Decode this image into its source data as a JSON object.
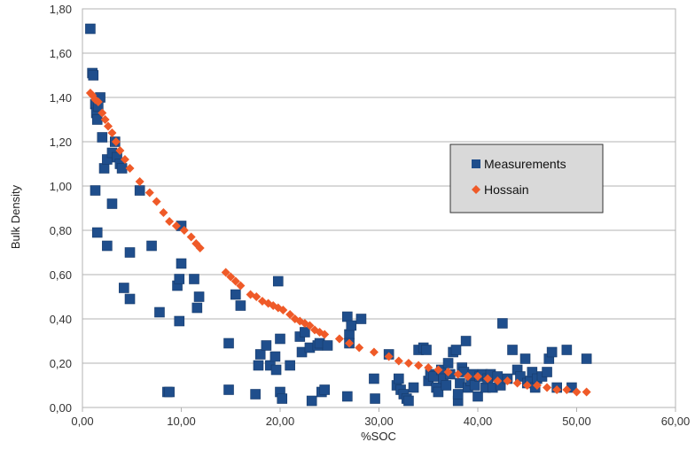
{
  "chart_data": {
    "type": "scatter",
    "title": "",
    "xlabel": "%SOC",
    "ylabel": "Bulk Density",
    "xlim": [
      0,
      60
    ],
    "ylim": [
      0,
      1.8
    ],
    "x_ticks": [
      "0,00",
      "10,00",
      "20,00",
      "30,00",
      "40,00",
      "50,00",
      "60,00"
    ],
    "y_ticks": [
      "0,00",
      "0,20",
      "0,40",
      "0,60",
      "0,80",
      "1,00",
      "1,20",
      "1,40",
      "1,60",
      "1,80"
    ],
    "grid": "horizontal",
    "legend_position": "right",
    "series": [
      {
        "name": "Measurements",
        "color": "#1f4e8c",
        "marker": "square",
        "points": [
          [
            0.8,
            1.71
          ],
          [
            1.0,
            1.51
          ],
          [
            1.1,
            1.5
          ],
          [
            1.3,
            1.37
          ],
          [
            1.4,
            1.33
          ],
          [
            1.5,
            1.3
          ],
          [
            1.8,
            1.4
          ],
          [
            1.6,
            1.36
          ],
          [
            2.0,
            1.22
          ],
          [
            2.2,
            1.08
          ],
          [
            2.5,
            1.12
          ],
          [
            3.0,
            1.15
          ],
          [
            3.3,
            1.2
          ],
          [
            3.5,
            1.13
          ],
          [
            3.8,
            1.1
          ],
          [
            4.0,
            1.08
          ],
          [
            1.3,
            0.98
          ],
          [
            3.0,
            0.92
          ],
          [
            5.8,
            0.98
          ],
          [
            1.5,
            0.79
          ],
          [
            2.5,
            0.73
          ],
          [
            4.8,
            0.7
          ],
          [
            7.0,
            0.73
          ],
          [
            10.0,
            0.82
          ],
          [
            4.2,
            0.54
          ],
          [
            4.8,
            0.49
          ],
          [
            7.8,
            0.43
          ],
          [
            9.8,
            0.39
          ],
          [
            9.6,
            0.55
          ],
          [
            10.0,
            0.65
          ],
          [
            9.8,
            0.58
          ],
          [
            11.3,
            0.58
          ],
          [
            11.8,
            0.5
          ],
          [
            11.6,
            0.45
          ],
          [
            8.6,
            0.07
          ],
          [
            8.8,
            0.07
          ],
          [
            14.8,
            0.29
          ],
          [
            14.8,
            0.08
          ],
          [
            15.5,
            0.51
          ],
          [
            16.0,
            0.46
          ],
          [
            17.5,
            0.06
          ],
          [
            17.8,
            0.19
          ],
          [
            18.0,
            0.24
          ],
          [
            18.6,
            0.28
          ],
          [
            19.0,
            0.19
          ],
          [
            19.5,
            0.23
          ],
          [
            19.6,
            0.17
          ],
          [
            19.8,
            0.57
          ],
          [
            20.0,
            0.31
          ],
          [
            20.0,
            0.07
          ],
          [
            20.2,
            0.04
          ],
          [
            21.0,
            0.19
          ],
          [
            22.0,
            0.32
          ],
          [
            22.2,
            0.25
          ],
          [
            22.5,
            0.34
          ],
          [
            23.0,
            0.27
          ],
          [
            23.2,
            0.03
          ],
          [
            23.8,
            0.28
          ],
          [
            24.0,
            0.29
          ],
          [
            24.2,
            0.07
          ],
          [
            24.5,
            0.08
          ],
          [
            24.8,
            0.28
          ],
          [
            26.8,
            0.41
          ],
          [
            27.0,
            0.33
          ],
          [
            27.2,
            0.37
          ],
          [
            27.0,
            0.29
          ],
          [
            26.8,
            0.05
          ],
          [
            28.2,
            0.4
          ],
          [
            29.5,
            0.13
          ],
          [
            29.6,
            0.04
          ],
          [
            31.0,
            0.24
          ],
          [
            31.8,
            0.1
          ],
          [
            32.0,
            0.13
          ],
          [
            32.2,
            0.08
          ],
          [
            32.5,
            0.06
          ],
          [
            32.8,
            0.04
          ],
          [
            33.0,
            0.03
          ],
          [
            33.5,
            0.09
          ],
          [
            34.0,
            0.26
          ],
          [
            34.5,
            0.27
          ],
          [
            34.8,
            0.26
          ],
          [
            35.0,
            0.12
          ],
          [
            35.2,
            0.15
          ],
          [
            35.5,
            0.14
          ],
          [
            35.8,
            0.09
          ],
          [
            36.0,
            0.07
          ],
          [
            36.3,
            0.17
          ],
          [
            36.5,
            0.13
          ],
          [
            36.8,
            0.1
          ],
          [
            37.0,
            0.2
          ],
          [
            37.2,
            0.15
          ],
          [
            37.5,
            0.25
          ],
          [
            37.8,
            0.26
          ],
          [
            38.0,
            0.03
          ],
          [
            38.0,
            0.06
          ],
          [
            38.2,
            0.11
          ],
          [
            38.4,
            0.18
          ],
          [
            38.6,
            0.16
          ],
          [
            38.8,
            0.3
          ],
          [
            39.0,
            0.09
          ],
          [
            39.3,
            0.12
          ],
          [
            39.5,
            0.15
          ],
          [
            39.7,
            0.1
          ],
          [
            40.0,
            0.05
          ],
          [
            40.2,
            0.14
          ],
          [
            40.5,
            0.15
          ],
          [
            40.8,
            0.09
          ],
          [
            41.0,
            0.13
          ],
          [
            41.3,
            0.15
          ],
          [
            41.5,
            0.09
          ],
          [
            42.0,
            0.14
          ],
          [
            42.3,
            0.1
          ],
          [
            42.5,
            0.38
          ],
          [
            43.0,
            0.13
          ],
          [
            43.5,
            0.26
          ],
          [
            44.0,
            0.17
          ],
          [
            44.3,
            0.14
          ],
          [
            44.8,
            0.22
          ],
          [
            45.0,
            0.11
          ],
          [
            45.3,
            0.12
          ],
          [
            45.5,
            0.16
          ],
          [
            45.8,
            0.09
          ],
          [
            46.0,
            0.13
          ],
          [
            46.5,
            0.14
          ],
          [
            47.0,
            0.16
          ],
          [
            47.2,
            0.22
          ],
          [
            47.5,
            0.25
          ],
          [
            48.0,
            0.09
          ],
          [
            49.0,
            0.26
          ],
          [
            49.5,
            0.09
          ],
          [
            51.0,
            0.22
          ]
        ]
      },
      {
        "name": "Hossain",
        "color": "#ef5a28",
        "marker": "diamond",
        "points": [
          [
            0.8,
            1.42
          ],
          [
            1.0,
            1.41
          ],
          [
            1.3,
            1.39
          ],
          [
            1.6,
            1.38
          ],
          [
            2.0,
            1.33
          ],
          [
            2.3,
            1.3
          ],
          [
            2.6,
            1.27
          ],
          [
            3.0,
            1.24
          ],
          [
            3.4,
            1.2
          ],
          [
            3.8,
            1.16
          ],
          [
            4.3,
            1.12
          ],
          [
            4.8,
            1.08
          ],
          [
            5.8,
            1.02
          ],
          [
            6.8,
            0.97
          ],
          [
            7.5,
            0.93
          ],
          [
            8.2,
            0.88
          ],
          [
            8.8,
            0.84
          ],
          [
            9.5,
            0.82
          ],
          [
            10.3,
            0.8
          ],
          [
            11.0,
            0.77
          ],
          [
            11.5,
            0.74
          ],
          [
            11.9,
            0.72
          ],
          [
            14.5,
            0.61
          ],
          [
            15.0,
            0.59
          ],
          [
            15.5,
            0.57
          ],
          [
            16.0,
            0.55
          ],
          [
            17.0,
            0.51
          ],
          [
            17.6,
            0.5
          ],
          [
            18.2,
            0.48
          ],
          [
            18.8,
            0.47
          ],
          [
            19.3,
            0.46
          ],
          [
            19.8,
            0.45
          ],
          [
            20.3,
            0.44
          ],
          [
            21.0,
            0.42
          ],
          [
            21.5,
            0.4
          ],
          [
            22.0,
            0.39
          ],
          [
            22.5,
            0.38
          ],
          [
            23.0,
            0.37
          ],
          [
            23.5,
            0.35
          ],
          [
            24.0,
            0.34
          ],
          [
            24.5,
            0.33
          ],
          [
            26.0,
            0.31
          ],
          [
            27.0,
            0.29
          ],
          [
            28.0,
            0.27
          ],
          [
            29.5,
            0.25
          ],
          [
            31.0,
            0.23
          ],
          [
            32.0,
            0.21
          ],
          [
            33.0,
            0.2
          ],
          [
            34.0,
            0.19
          ],
          [
            35.0,
            0.18
          ],
          [
            36.0,
            0.17
          ],
          [
            37.0,
            0.16
          ],
          [
            38.0,
            0.15
          ],
          [
            39.0,
            0.14
          ],
          [
            40.0,
            0.14
          ],
          [
            41.0,
            0.13
          ],
          [
            42.0,
            0.12
          ],
          [
            43.0,
            0.12
          ],
          [
            44.0,
            0.11
          ],
          [
            45.0,
            0.1
          ],
          [
            46.0,
            0.1
          ],
          [
            47.0,
            0.09
          ],
          [
            48.0,
            0.08
          ],
          [
            49.0,
            0.08
          ],
          [
            50.0,
            0.07
          ],
          [
            51.0,
            0.07
          ]
        ]
      }
    ]
  }
}
